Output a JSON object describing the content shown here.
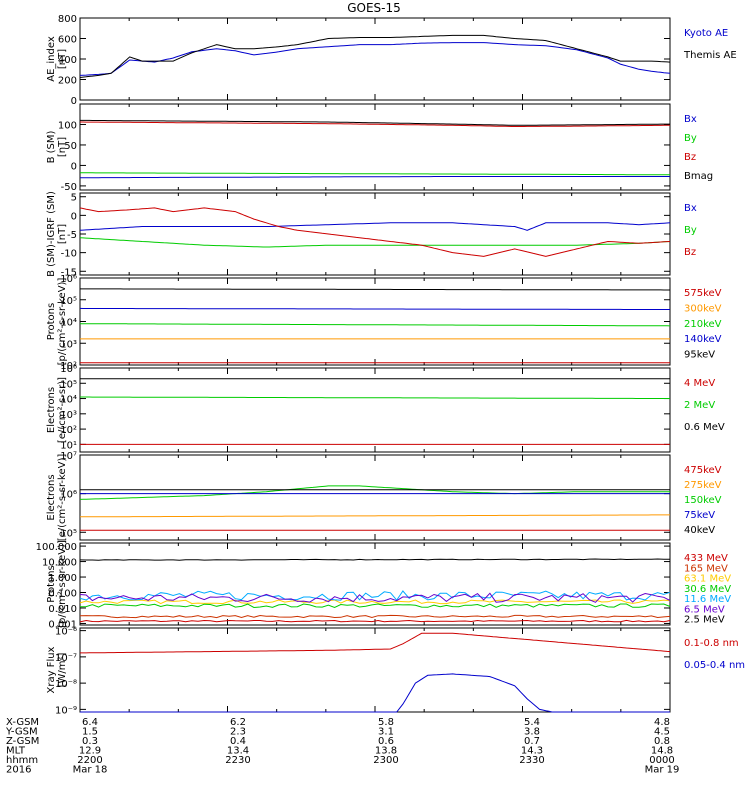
{
  "title": "GOES-15",
  "chart_data": [
    {
      "id": "ae",
      "type": "line",
      "ylabel": "AE_index\n[nT]",
      "ylim": [
        0,
        800
      ],
      "scale": "linear",
      "ticks": [
        "0",
        "200",
        "400",
        "600",
        "800"
      ],
      "tick_values": [
        0,
        200,
        400,
        600,
        800
      ],
      "series": [
        {
          "name": "Kyoto AE",
          "color": "#0000cc",
          "x": [
            0,
            3,
            5,
            8,
            10,
            12,
            15,
            18,
            22,
            25,
            28,
            32,
            35,
            40,
            45,
            50,
            55,
            60,
            65,
            70,
            75,
            80,
            85,
            87,
            90,
            92,
            95
          ],
          "y": [
            240,
            250,
            260,
            390,
            380,
            370,
            410,
            470,
            500,
            480,
            440,
            470,
            500,
            520,
            540,
            540,
            555,
            560,
            560,
            540,
            530,
            490,
            410,
            350,
            300,
            280,
            260
          ]
        },
        {
          "name": "Themis AE",
          "color": "#000000",
          "x": [
            0,
            3,
            5,
            8,
            10,
            12,
            15,
            18,
            22,
            25,
            28,
            32,
            35,
            40,
            45,
            50,
            55,
            60,
            65,
            70,
            75,
            80,
            85,
            87,
            90,
            92,
            95
          ],
          "y": [
            220,
            240,
            260,
            420,
            380,
            380,
            380,
            460,
            540,
            500,
            500,
            520,
            540,
            600,
            610,
            610,
            620,
            630,
            630,
            600,
            580,
            500,
            420,
            380,
            380,
            380,
            370
          ]
        }
      ]
    },
    {
      "id": "bsm",
      "type": "line",
      "ylabel": "B (SM)\n[nT]",
      "ylim": [
        -60,
        150
      ],
      "scale": "linear",
      "ticks": [
        "-50",
        "0",
        "50",
        "100"
      ],
      "tick_values": [
        -50,
        0,
        50,
        100
      ],
      "series": [
        {
          "name": "Bx",
          "color": "#0000cc",
          "x": [
            0,
            20,
            40,
            60,
            80,
            95
          ],
          "y": [
            -30,
            -29,
            -28,
            -27,
            -27,
            -27
          ]
        },
        {
          "name": "By",
          "color": "#00cc00",
          "x": [
            0,
            20,
            40,
            60,
            80,
            95
          ],
          "y": [
            -18,
            -19,
            -20,
            -21,
            -22,
            -23
          ]
        },
        {
          "name": "Bz",
          "color": "#cc0000",
          "x": [
            0,
            20,
            40,
            60,
            70,
            80,
            95
          ],
          "y": [
            106,
            104,
            102,
            98,
            95,
            96,
            98
          ]
        },
        {
          "name": "Bmag",
          "color": "#000000",
          "x": [
            0,
            20,
            40,
            60,
            70,
            80,
            95
          ],
          "y": [
            110,
            108,
            106,
            101,
            98,
            99,
            101
          ]
        }
      ]
    },
    {
      "id": "bigrf",
      "type": "line",
      "ylabel": "B (SM)-IGRF (SM)\n[nT]",
      "ylim": [
        -16,
        6
      ],
      "scale": "linear",
      "ticks": [
        "-15",
        "-10",
        "-5",
        "0",
        "5"
      ],
      "tick_values": [
        -15,
        -10,
        -5,
        0,
        5
      ],
      "series": [
        {
          "name": "Bx",
          "color": "#0000cc",
          "x": [
            0,
            5,
            10,
            20,
            30,
            40,
            50,
            60,
            70,
            72,
            75,
            80,
            85,
            90,
            95
          ],
          "y": [
            -4,
            -3.5,
            -3,
            -3,
            -3,
            -2.5,
            -2,
            -2,
            -3,
            -4,
            -2,
            -2,
            -2,
            -2.5,
            -2
          ]
        },
        {
          "name": "By",
          "color": "#00cc00",
          "x": [
            0,
            10,
            20,
            30,
            40,
            50,
            60,
            70,
            80,
            90,
            95
          ],
          "y": [
            -6,
            -7,
            -8,
            -8.5,
            -8,
            -8,
            -8,
            -8,
            -8,
            -7.5,
            -7
          ]
        },
        {
          "name": "Bz",
          "color": "#cc0000",
          "x": [
            0,
            3,
            8,
            12,
            15,
            20,
            25,
            28,
            32,
            35,
            40,
            50,
            55,
            60,
            65,
            70,
            75,
            80,
            85,
            90,
            95
          ],
          "y": [
            2,
            1,
            1.5,
            2,
            1,
            2,
            1,
            -1,
            -3,
            -4,
            -5,
            -7,
            -8,
            -10,
            -11,
            -9,
            -11,
            -9,
            -7,
            -7.5,
            -7
          ]
        }
      ]
    },
    {
      "id": "protons1",
      "type": "line",
      "ylabel": "Protons\n[p/(cm²-s-sr-keV)]",
      "ylim": [
        2,
        6
      ],
      "scale": "log",
      "ticks": [
        "10²",
        "10³",
        "10⁴",
        "10⁵",
        "10⁶"
      ],
      "tick_values": [
        2,
        3,
        4,
        5,
        6
      ],
      "series": [
        {
          "name": "575keV",
          "color": "#cc0000",
          "x": [
            0,
            95
          ],
          "y": [
            2.1,
            2.1
          ]
        },
        {
          "name": "300keV",
          "color": "#ff9900",
          "x": [
            0,
            95
          ],
          "y": [
            3.2,
            3.2
          ]
        },
        {
          "name": "210keV",
          "color": "#00cc00",
          "x": [
            0,
            95
          ],
          "y": [
            3.9,
            3.8
          ]
        },
        {
          "name": "140keV",
          "color": "#0000cc",
          "x": [
            0,
            95
          ],
          "y": [
            4.6,
            4.55
          ]
        },
        {
          "name": "95keV",
          "color": "#000000",
          "x": [
            0,
            95
          ],
          "y": [
            5.5,
            5.45
          ]
        }
      ]
    },
    {
      "id": "electrons1",
      "type": "line",
      "ylabel": "Electrons\n[e/(cm²-s-sr)]",
      "ylim": [
        0.5,
        6
      ],
      "scale": "log",
      "ticks": [
        "10¹",
        "10²",
        "10³",
        "10⁴",
        "10⁵",
        "10⁶"
      ],
      "tick_values": [
        1,
        2,
        3,
        4,
        5,
        6
      ],
      "series": [
        {
          "name": "4 MeV",
          "color": "#cc0000",
          "x": [
            0,
            95
          ],
          "y": [
            1.0,
            1.0
          ]
        },
        {
          "name": "2 MeV",
          "color": "#00cc00",
          "x": [
            0,
            95
          ],
          "y": [
            4.1,
            4.0
          ]
        },
        {
          "name": "0.6 MeV",
          "color": "#000000",
          "x": [
            0,
            95
          ],
          "y": [
            5.3,
            5.3
          ]
        }
      ]
    },
    {
      "id": "electrons2",
      "type": "line",
      "ylabel": "Electrons\n[e/(cm²-s-sr-keV)]",
      "ylim": [
        4.8,
        7
      ],
      "scale": "log",
      "ticks": [
        "10⁵",
        "10⁶",
        "10⁷"
      ],
      "tick_values": [
        5,
        6,
        7
      ],
      "series": [
        {
          "name": "475keV",
          "color": "#cc0000",
          "x": [
            0,
            95
          ],
          "y": [
            5.05,
            5.05
          ]
        },
        {
          "name": "275keV",
          "color": "#ff9900",
          "x": [
            0,
            95
          ],
          "y": [
            5.4,
            5.45
          ]
        },
        {
          "name": "150keV",
          "color": "#00cc00",
          "x": [
            0,
            10,
            20,
            30,
            40,
            45,
            50,
            60,
            70,
            80,
            95
          ],
          "y": [
            5.85,
            5.9,
            5.95,
            6.05,
            6.2,
            6.2,
            6.15,
            6.05,
            6.0,
            6.05,
            6.05
          ]
        },
        {
          "name": "75keV",
          "color": "#0000cc",
          "x": [
            0,
            95
          ],
          "y": [
            6.0,
            6.0
          ]
        },
        {
          "name": "40keV",
          "color": "#000000",
          "x": [
            0,
            95
          ],
          "y": [
            6.1,
            6.1
          ]
        }
      ]
    },
    {
      "id": "protons2",
      "type": "line",
      "ylabel": "Protons\n[p/(cm²-s-sr-keV)]",
      "ylim": [
        -3.1,
        2.2
      ],
      "scale": "log",
      "ticks": [
        "0.001",
        "0.010",
        "0.100",
        "1.000",
        "10.000",
        "100.000"
      ],
      "tick_values": [
        -3,
        -2,
        -1,
        0,
        1,
        2
      ],
      "series": [
        {
          "name": "433 MeV",
          "color": "#cc0000",
          "x": [
            0,
            95
          ],
          "y": [
            -2.85,
            -2.85
          ],
          "noise": 0.05
        },
        {
          "name": "165 MeV",
          "color": "#cc3300",
          "x": [
            0,
            95
          ],
          "y": [
            -2.55,
            -2.55
          ],
          "noise": 0.07
        },
        {
          "name": "63.1 MeV",
          "color": "#ffcc00",
          "x": [
            0,
            95
          ],
          "y": [
            -1.6,
            -1.6
          ],
          "noise": 0.12
        },
        {
          "name": "30.6 MeV",
          "color": "#00cc00",
          "x": [
            0,
            95
          ],
          "y": [
            -1.85,
            -1.85
          ],
          "noise": 0.12
        },
        {
          "name": "11.6 MeV",
          "color": "#00aaff",
          "x": [
            0,
            95
          ],
          "y": [
            -1.2,
            -1.2
          ],
          "noise": 0.3
        },
        {
          "name": "6.5 MeV",
          "color": "#6600cc",
          "x": [
            0,
            95
          ],
          "y": [
            -1.35,
            -1.35
          ],
          "noise": 0.3
        },
        {
          "name": "2.5 MeV",
          "color": "#000000",
          "x": [
            0,
            95
          ],
          "y": [
            1.1,
            1.15
          ],
          "noise": 0.02
        }
      ]
    },
    {
      "id": "xray",
      "type": "line",
      "ylabel": "Xray Flux\n[W/m²]",
      "ylim": [
        -9.1,
        -5.9
      ],
      "scale": "log",
      "ticks": [
        "10⁻⁹",
        "10⁻⁸",
        "10⁻⁷",
        "10⁻⁶"
      ],
      "tick_values": [
        -9,
        -8,
        -7,
        -6
      ],
      "series": [
        {
          "name": "0.1-0.8 nm",
          "color": "#cc0000",
          "x": [
            0,
            20,
            40,
            50,
            52,
            55,
            60,
            70,
            80,
            90,
            95
          ],
          "y": [
            -6.85,
            -6.8,
            -6.75,
            -6.7,
            -6.5,
            -6.1,
            -6.1,
            -6.3,
            -6.5,
            -6.7,
            -6.8
          ]
        },
        {
          "name": "0.05-0.4 nm",
          "color": "#0000cc",
          "x": [
            0,
            51,
            52,
            54,
            56,
            60,
            66,
            70,
            72,
            74,
            76,
            95
          ],
          "y": [
            -9.1,
            -9.1,
            -8.8,
            -8.0,
            -7.7,
            -7.65,
            -7.75,
            -8.1,
            -8.6,
            -9.0,
            -9.1,
            -9.1
          ]
        }
      ]
    }
  ],
  "ephemeris": {
    "row_labels": [
      "X-GSM",
      "Y-GSM",
      "Z-GSM",
      "MLT",
      "hhmm",
      "2016"
    ],
    "columns": [
      {
        "values": [
          "6.4",
          "1.5",
          "0.3",
          "12.9",
          "2200",
          "Mar 18"
        ]
      },
      {
        "values": [
          "6.2",
          "2.3",
          "0.4",
          "13.4",
          "2230",
          ""
        ]
      },
      {
        "values": [
          "5.8",
          "3.1",
          "0.6",
          "13.8",
          "2300",
          ""
        ]
      },
      {
        "values": [
          "5.4",
          "3.8",
          "0.7",
          "14.3",
          "2330",
          ""
        ]
      },
      {
        "values": [
          "4.8",
          "4.5",
          "0.8",
          "14.8",
          "0000",
          "Mar 19"
        ]
      }
    ]
  }
}
